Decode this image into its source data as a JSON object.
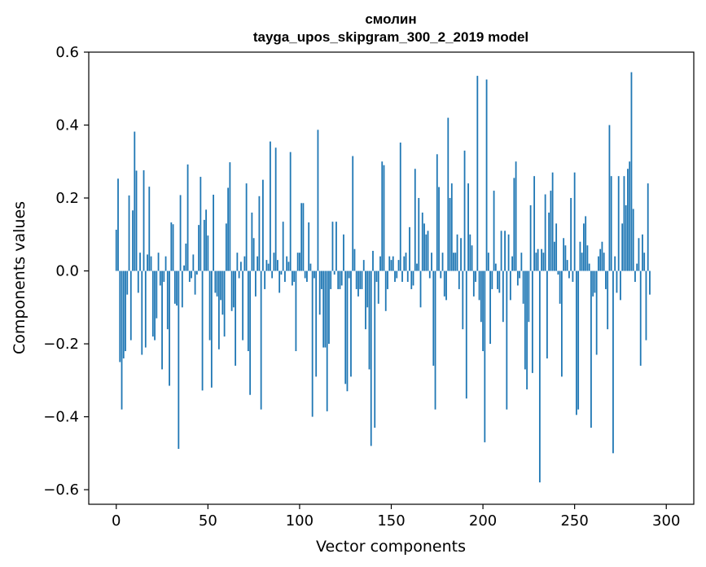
{
  "chart_data": {
    "type": "bar",
    "title_line1": "смолин",
    "title_line2": "tayga_upos_skipgram_300_2_2019 model",
    "xlabel": "Vector components",
    "ylabel": "Components values",
    "xlim": [
      -15,
      315
    ],
    "ylim": [
      -0.64,
      0.6
    ],
    "xticks": [
      0,
      50,
      100,
      150,
      200,
      250,
      300
    ],
    "xtick_labels": [
      "0",
      "50",
      "100",
      "150",
      "200",
      "250",
      "300"
    ],
    "yticks": [
      -0.6,
      -0.4,
      -0.2,
      0.0,
      0.2,
      0.4,
      0.6
    ],
    "ytick_labels": [
      "−0.6",
      "−0.4",
      "−0.2",
      "0.0",
      "0.2",
      "0.4",
      "0.6"
    ],
    "bar_color": "#1f77b4",
    "grid": false,
    "values": [
      0.113,
      0.253,
      -0.25,
      -0.38,
      -0.24,
      -0.22,
      -0.065,
      0.207,
      -0.19,
      0.166,
      0.382,
      0.275,
      -0.06,
      0.05,
      -0.23,
      0.276,
      -0.21,
      0.045,
      0.231,
      0.04,
      -0.18,
      -0.19,
      -0.13,
      0.05,
      -0.04,
      -0.27,
      -0.03,
      0.04,
      -0.16,
      -0.315,
      0.133,
      0.128,
      -0.09,
      -0.095,
      -0.488,
      0.208,
      -0.1,
      0.015,
      0.075,
      0.292,
      -0.03,
      -0.02,
      0.045,
      -0.065,
      -0.01,
      0.126,
      0.258,
      -0.328,
      0.14,
      0.168,
      0.097,
      -0.19,
      -0.32,
      0.209,
      -0.06,
      -0.07,
      -0.215,
      -0.08,
      -0.12,
      -0.18,
      0.13,
      0.228,
      0.298,
      -0.11,
      -0.1,
      -0.26,
      0.05,
      -0.02,
      0.025,
      -0.19,
      0.04,
      0.24,
      -0.22,
      -0.34,
      0.16,
      0.09,
      -0.07,
      0.04,
      0.205,
      -0.38,
      0.25,
      -0.05,
      0.03,
      0.02,
      0.355,
      -0.02,
      0.05,
      0.338,
      0.03,
      -0.06,
      -0.01,
      0.135,
      -0.03,
      0.04,
      0.025,
      0.326,
      -0.04,
      -0.03,
      -0.22,
      0.05,
      0.05,
      0.186,
      0.186,
      -0.02,
      -0.03,
      0.133,
      0.02,
      -0.4,
      -0.02,
      -0.29,
      0.387,
      -0.12,
      -0.05,
      -0.21,
      -0.21,
      -0.385,
      -0.2,
      -0.05,
      0.135,
      -0.01,
      0.135,
      -0.05,
      -0.05,
      -0.04,
      0.1,
      -0.31,
      -0.33,
      -0.02,
      -0.29,
      0.315,
      0.06,
      -0.05,
      -0.07,
      -0.05,
      -0.05,
      0.03,
      -0.16,
      -0.1,
      -0.27,
      -0.48,
      0.055,
      -0.43,
      -0.03,
      -0.09,
      0.04,
      0.3,
      0.29,
      -0.11,
      -0.05,
      0.04,
      0.03,
      0.04,
      -0.03,
      -0.02,
      0.03,
      0.352,
      -0.03,
      0.04,
      0.05,
      -0.03,
      0.12,
      -0.05,
      -0.04,
      0.28,
      0.02,
      0.2,
      -0.1,
      0.16,
      0.13,
      0.1,
      0.11,
      -0.02,
      0.05,
      -0.26,
      -0.38,
      0.32,
      0.23,
      -0.02,
      0.05,
      -0.07,
      -0.08,
      0.42,
      0.2,
      0.24,
      0.05,
      0.05,
      0.1,
      -0.05,
      0.09,
      -0.16,
      0.33,
      -0.35,
      0.24,
      0.1,
      0.07,
      -0.07,
      -0.03,
      0.535,
      -0.08,
      -0.14,
      -0.22,
      -0.47,
      0.525,
      0.05,
      -0.2,
      -0.05,
      0.22,
      0.02,
      -0.05,
      -0.06,
      0.11,
      -0.14,
      0.11,
      -0.38,
      0.1,
      -0.08,
      0.04,
      0.255,
      0.3,
      -0.04,
      -0.02,
      0.05,
      -0.09,
      -0.27,
      -0.325,
      -0.14,
      0.18,
      -0.28,
      0.26,
      0.05,
      0.06,
      -0.58,
      0.06,
      0.05,
      0.21,
      -0.24,
      0.16,
      0.22,
      0.27,
      0.08,
      0.13,
      -0.01,
      -0.09,
      -0.29,
      0.09,
      0.07,
      0.03,
      -0.02,
      0.2,
      -0.03,
      0.27,
      -0.395,
      -0.38,
      0.08,
      0.05,
      0.13,
      0.15,
      0.07,
      0.02,
      -0.43,
      -0.07,
      -0.06,
      -0.23,
      0.04,
      0.06,
      0.08,
      0.05,
      -0.05,
      -0.16,
      0.4,
      0.26,
      -0.5,
      0.04,
      -0.06,
      0.26,
      -0.08,
      0.13,
      0.26,
      0.18,
      0.28,
      0.3,
      0.545,
      0.17,
      -0.03,
      0.02,
      0.09,
      -0.26,
      0.1,
      0.05,
      -0.19,
      0.24,
      -0.065
    ]
  }
}
